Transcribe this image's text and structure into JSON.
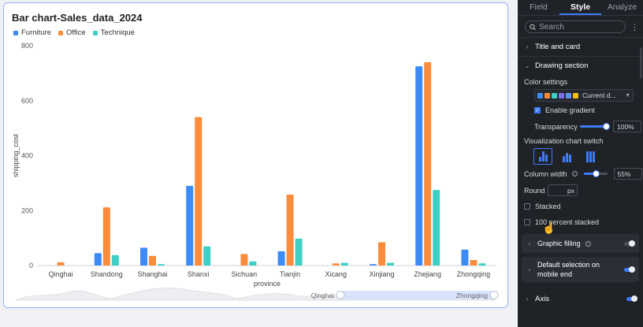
{
  "chart": {
    "title": "Bar chart-Sales_data_2024",
    "legend": [
      {
        "label": "Furniture",
        "color": "#3d8bf5"
      },
      {
        "label": "Office",
        "color": "#fa8c3c"
      },
      {
        "label": "Technique",
        "color": "#3ecfc5"
      }
    ],
    "slider": {
      "start_label": "Qinghai",
      "end_label": "Zhongqing"
    }
  },
  "chart_data": {
    "type": "bar",
    "categories": [
      "Qinghai",
      "Shandong",
      "Shanghai",
      "Shanxi",
      "Sichuan",
      "Tianjin",
      "Xicang",
      "Xinjiang",
      "Zhejiang",
      "Zhongqing"
    ],
    "series": [
      {
        "name": "Furniture",
        "values": [
          0,
          45,
          65,
          290,
          0,
          52,
          0,
          5,
          725,
          58
        ]
      },
      {
        "name": "Office",
        "values": [
          12,
          212,
          35,
          540,
          42,
          258,
          8,
          85,
          740,
          20
        ]
      },
      {
        "name": "Technique",
        "values": [
          0,
          38,
          5,
          70,
          15,
          98,
          10,
          10,
          275,
          8
        ]
      }
    ],
    "xlabel": "province",
    "ylabel": "shipping_cost",
    "ylim": [
      0,
      800
    ],
    "yticks": [
      0,
      200,
      400,
      600,
      800
    ],
    "grid": false,
    "legend_position": "top-left"
  },
  "panel": {
    "tabs": [
      "Field",
      "Style",
      "Analyze"
    ],
    "active_tab": "Style",
    "search_placeholder": "Search",
    "title_card": "Title and card",
    "drawing_section": "Drawing section",
    "color_settings": "Color settings",
    "color_scheme_label": "Current d...",
    "palette": [
      "#3d8bf5",
      "#fa8c3c",
      "#3ecfc5",
      "#7b6cf0",
      "#5b8ff9",
      "#f6bd16"
    ],
    "enable_gradient": "Enable gradient",
    "transparency_label": "Transparency",
    "transparency_value": "100%",
    "transparency_fraction": 1.0,
    "viz_switch_label": "Visualization chart switch",
    "column_width_label": "Column width",
    "column_width_value": "55%",
    "column_width_fraction": 0.55,
    "round_label": "Round",
    "round_unit": "px",
    "stacked_label": "Stacked",
    "percent_stacked_label": "100 percent stacked",
    "graphic_filling": "Graphic filling",
    "default_selection": "Default selection on mobile end",
    "axis": "Axis"
  }
}
